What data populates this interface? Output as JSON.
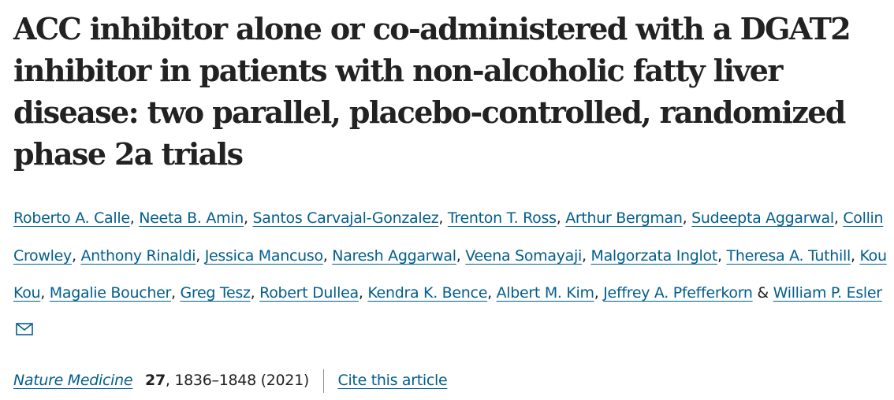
{
  "article": {
    "title": "ACC inhibitor alone or co-administered with a DGAT2 inhibitor in patients with non-alcoholic fatty liver disease: two parallel, placebo-controlled, randomized phase 2a trials"
  },
  "authors": [
    "Roberto A. Calle",
    "Neeta B. Amin",
    "Santos Carvajal-Gonzalez",
    "Trenton T. Ross",
    "Arthur Bergman",
    "Sudeepta Aggarwal",
    "Collin Crowley",
    "Anthony Rinaldi",
    "Jessica Mancuso",
    "Naresh Aggarwal",
    "Veena Somayaji",
    "Malgorzata Inglot",
    "Theresa A. Tuthill",
    "Kou Kou",
    "Magalie Boucher",
    "Greg Tesz",
    "Robert Dullea",
    "Kendra K. Bence",
    "Albert M. Kim",
    "Jeffrey A. Pfefferkorn",
    "William P. Esler"
  ],
  "author_separator": ",",
  "last_author_joiner": "&",
  "corresponding_icon": "envelope-icon",
  "citation": {
    "journal": "Nature Medicine",
    "volume": "27",
    "pages_year": ", 1836–1848 (2021)",
    "cite_link": "Cite this article"
  },
  "colors": {
    "text": "#222222",
    "link": "#025e8d",
    "divider": "#8f8f8f"
  }
}
